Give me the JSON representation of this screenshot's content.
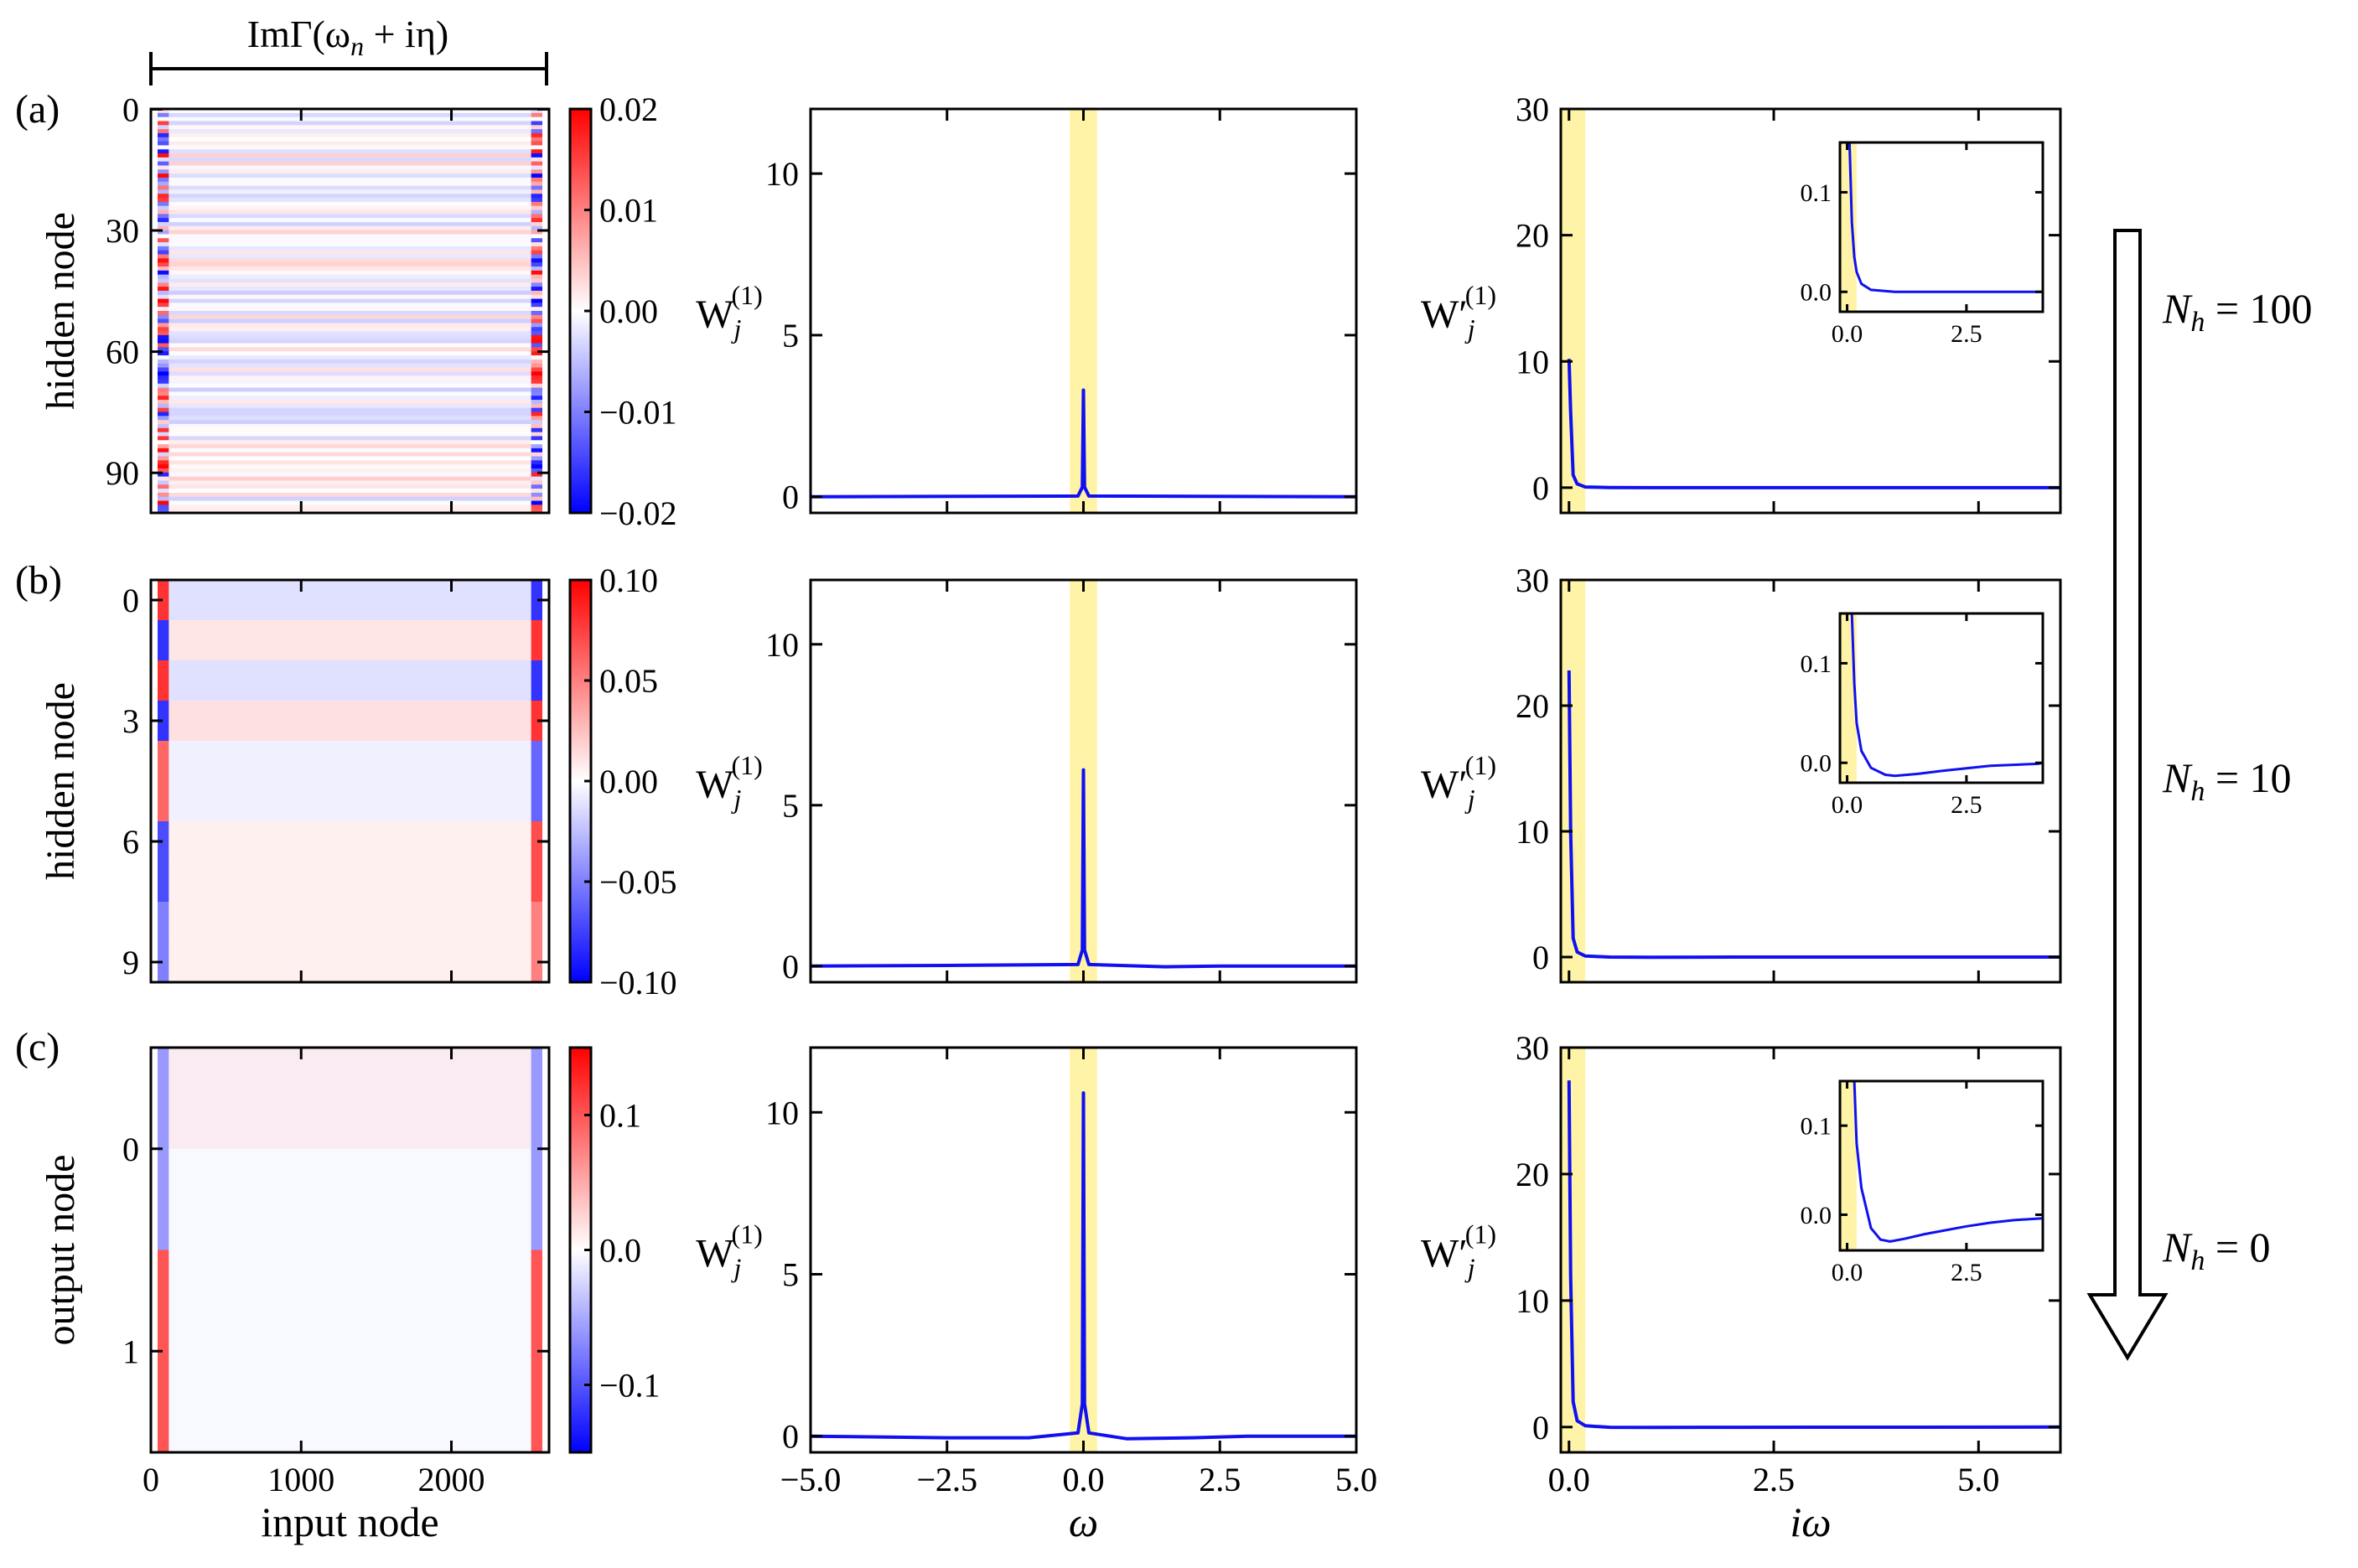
{
  "header": {
    "title": "ImΓ(ω",
    "title_sub": "n",
    "title_tail": " + iη)"
  },
  "arrow_labels": [
    {
      "prefix": "N",
      "sub": "h",
      "tail": " = 100"
    },
    {
      "prefix": "N",
      "sub": "h",
      "tail": " = 10"
    },
    {
      "prefix": "N",
      "sub": "h",
      "tail": " = 0"
    }
  ],
  "colors": {
    "red": "#ff0000",
    "blue": "#0000ff",
    "highlight": "#fff3a8",
    "curve": "#1010f0"
  },
  "chart_data": [
    {
      "type": "heatmap",
      "panel": "(a)",
      "ylabel": "hidden node",
      "xlabel": "",
      "yticks": [
        "0",
        "30",
        "60",
        "90"
      ],
      "xticks": [],
      "colorbar_ticks": [
        "0.02",
        "0.01",
        "0.00",
        "−0.01",
        "−0.02"
      ],
      "vmin": -0.02,
      "vmax": 0.02,
      "rows": 100,
      "cols": 2600,
      "ylim": [
        0,
        99
      ],
      "xlim": [
        0,
        2600
      ]
    },
    {
      "type": "line",
      "panel": "(a)-spectrum",
      "ylabel": "W",
      "ylabel_sub": "j",
      "ylabel_sup": "(1)",
      "xlabel": "",
      "xlim": [
        -5,
        5
      ],
      "ylim": [
        -0.5,
        12
      ],
      "yticks": [
        "0",
        "5",
        "10"
      ],
      "xticks": [],
      "highlight": [
        -0.25,
        0.25
      ],
      "series": [
        {
          "x": [
            -5,
            -0.1,
            -0.02,
            0.0,
            0.02,
            0.1,
            5
          ],
          "y": [
            0.0,
            0.02,
            0.3,
            3.3,
            0.3,
            0.02,
            0.0
          ]
        }
      ]
    },
    {
      "type": "line",
      "panel": "(a)-imag",
      "ylabel": "W′",
      "ylabel_sub": "j",
      "ylabel_sup": "(1)",
      "xlabel": "",
      "xlim": [
        -0.1,
        6
      ],
      "ylim": [
        -2,
        30
      ],
      "yticks": [
        "0",
        "10",
        "20",
        "30"
      ],
      "xticks": [],
      "highlight": [
        -0.1,
        0.2
      ],
      "series": [
        {
          "x": [
            0.0,
            0.02,
            0.05,
            0.1,
            0.2,
            0.5,
            1,
            2,
            4,
            6
          ],
          "y": [
            10.2,
            6.0,
            1.0,
            0.3,
            0.05,
            0.01,
            0.0,
            0.0,
            0.0,
            0.0
          ]
        }
      ],
      "inset": {
        "xlim": [
          -0.15,
          4.1
        ],
        "ylim": [
          -0.02,
          0.15
        ],
        "xticks": [
          "0.0",
          "2.5"
        ],
        "yticks": [
          "0.0",
          "0.1"
        ],
        "highlight": [
          -0.15,
          0.2
        ],
        "series": [
          {
            "x": [
              0.05,
              0.1,
              0.15,
              0.2,
              0.3,
              0.5,
              1.0,
              2.0,
              3.0,
              4.1
            ],
            "y": [
              0.15,
              0.07,
              0.035,
              0.02,
              0.008,
              0.002,
              0.0,
              0.0,
              0.0,
              0.0
            ]
          }
        ]
      }
    },
    {
      "type": "heatmap",
      "panel": "(b)",
      "ylabel": "hidden node",
      "xlabel": "",
      "yticks": [
        "0",
        "3",
        "6",
        "9"
      ],
      "xticks": [],
      "colorbar_ticks": [
        "0.10",
        "0.05",
        "0.00",
        "−0.05",
        "−0.10"
      ],
      "vmin": -0.1,
      "vmax": 0.1,
      "rows": 10,
      "cols": 2600,
      "ylim": [
        0,
        9
      ],
      "xlim": [
        0,
        2600
      ]
    },
    {
      "type": "line",
      "panel": "(b)-spectrum",
      "ylabel": "W",
      "ylabel_sub": "j",
      "ylabel_sup": "(1)",
      "xlabel": "",
      "xlim": [
        -5,
        5
      ],
      "ylim": [
        -0.5,
        12
      ],
      "yticks": [
        "0",
        "5",
        "10"
      ],
      "xticks": [],
      "highlight": [
        -0.25,
        0.25
      ],
      "series": [
        {
          "x": [
            -5,
            -2.5,
            -0.1,
            -0.02,
            0.0,
            0.02,
            0.1,
            1.5,
            2.5,
            5
          ],
          "y": [
            0.0,
            0.02,
            0.05,
            0.5,
            6.1,
            0.5,
            0.05,
            -0.02,
            0.0,
            0.0
          ]
        }
      ]
    },
    {
      "type": "line",
      "panel": "(b)-imag",
      "ylabel": "W′",
      "ylabel_sub": "j",
      "ylabel_sup": "(1)",
      "xlabel": "",
      "xlim": [
        -0.1,
        6
      ],
      "ylim": [
        -2,
        30
      ],
      "yticks": [
        "0",
        "10",
        "20",
        "30"
      ],
      "xticks": [],
      "highlight": [
        -0.1,
        0.2
      ],
      "series": [
        {
          "x": [
            0.0,
            0.02,
            0.05,
            0.1,
            0.2,
            0.5,
            1,
            2,
            4,
            6
          ],
          "y": [
            22.8,
            10.0,
            1.5,
            0.4,
            0.08,
            0.0,
            -0.02,
            0.0,
            0.0,
            0.0
          ]
        }
      ],
      "inset": {
        "xlim": [
          -0.15,
          4.1
        ],
        "ylim": [
          -0.02,
          0.15
        ],
        "xticks": [
          "0.0",
          "2.5"
        ],
        "yticks": [
          "0.0",
          "0.1"
        ],
        "highlight": [
          -0.15,
          0.2
        ],
        "series": [
          {
            "x": [
              0.1,
              0.15,
              0.2,
              0.3,
              0.5,
              0.8,
              1.0,
              1.5,
              2.0,
              3.0,
              4.0,
              4.1
            ],
            "y": [
              0.15,
              0.08,
              0.04,
              0.012,
              -0.005,
              -0.012,
              -0.013,
              -0.011,
              -0.008,
              -0.003,
              -0.001,
              0.0
            ]
          }
        ]
      }
    },
    {
      "type": "heatmap",
      "panel": "(c)",
      "ylabel": "output node",
      "xlabel": "input node",
      "yticks": [
        "0",
        "1"
      ],
      "xticks": [
        "0",
        "1000",
        "2000"
      ],
      "colorbar_ticks": [
        "0.1",
        "0.0",
        "−0.1"
      ],
      "vmin": -0.15,
      "vmax": 0.15,
      "rows": 2,
      "cols": 2600,
      "ylim": [
        0,
        1
      ],
      "xlim": [
        0,
        2600
      ]
    },
    {
      "type": "line",
      "panel": "(c)-spectrum",
      "ylabel": "W",
      "ylabel_sub": "j",
      "ylabel_sup": "(1)",
      "xlabel": "ω",
      "xlim": [
        -5,
        5
      ],
      "ylim": [
        -0.5,
        12
      ],
      "yticks": [
        "0",
        "5",
        "10"
      ],
      "xticks": [
        "−5.0",
        "−2.5",
        "0.0",
        "2.5",
        "5.0"
      ],
      "highlight": [
        -0.25,
        0.25
      ],
      "series": [
        {
          "x": [
            -5,
            -2.5,
            -1.0,
            -0.1,
            -0.02,
            0.0,
            0.02,
            0.1,
            0.8,
            2.0,
            3.0,
            5
          ],
          "y": [
            0.0,
            -0.05,
            -0.05,
            0.1,
            1.0,
            10.6,
            1.0,
            0.1,
            -0.08,
            -0.05,
            0.0,
            0.0
          ]
        }
      ]
    },
    {
      "type": "line",
      "panel": "(c)-imag",
      "ylabel": "W′",
      "ylabel_sub": "j",
      "ylabel_sup": "(1)",
      "xlabel": "iω",
      "xlim": [
        -0.1,
        6
      ],
      "ylim": [
        -2,
        30
      ],
      "yticks": [
        "0",
        "10",
        "20",
        "30"
      ],
      "xticks": [
        "0.0",
        "2.5",
        "5.0"
      ],
      "highlight": [
        -0.1,
        0.2
      ],
      "series": [
        {
          "x": [
            0.0,
            0.02,
            0.05,
            0.1,
            0.2,
            0.5,
            1,
            2,
            4,
            6
          ],
          "y": [
            27.4,
            12.0,
            2.0,
            0.5,
            0.1,
            -0.02,
            -0.03,
            -0.02,
            -0.01,
            0.0
          ]
        }
      ],
      "inset": {
        "xlim": [
          -0.15,
          4.1
        ],
        "ylim": [
          -0.04,
          0.15
        ],
        "xticks": [
          "0.0",
          "2.5"
        ],
        "yticks": [
          "0.0",
          "0.1"
        ],
        "highlight": [
          -0.15,
          0.2
        ],
        "series": [
          {
            "x": [
              0.15,
              0.2,
              0.3,
              0.5,
              0.7,
              0.9,
              1.2,
              1.6,
              2.0,
              2.5,
              3.0,
              3.5,
              4.1
            ],
            "y": [
              0.15,
              0.08,
              0.03,
              -0.015,
              -0.028,
              -0.03,
              -0.027,
              -0.022,
              -0.018,
              -0.013,
              -0.009,
              -0.006,
              -0.004
            ]
          }
        ]
      }
    }
  ]
}
